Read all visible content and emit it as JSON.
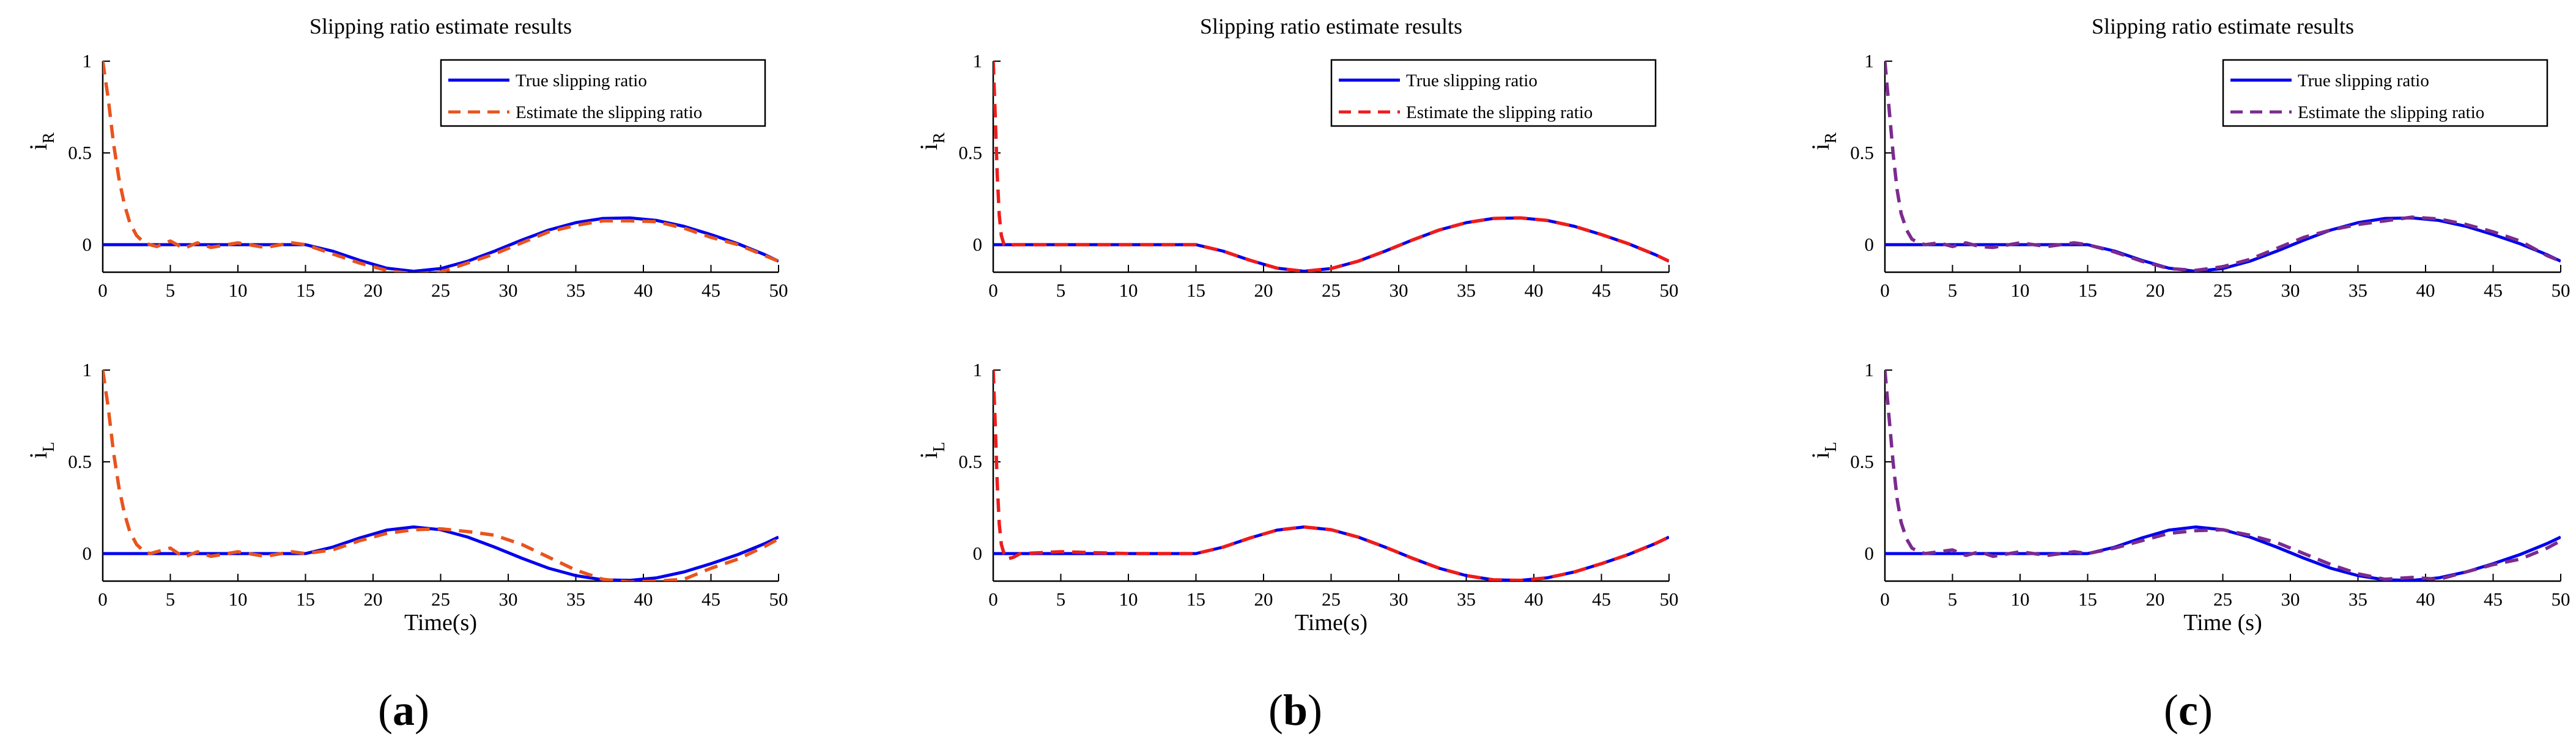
{
  "colors": {
    "true_line": "#0000ee",
    "estimate_a": "#e8541e",
    "estimate_b": "#ee1c1c",
    "estimate_c": "#7b2b8f"
  },
  "chart_data": [
    {
      "type": "line",
      "panel_label": "a",
      "title": "Slipping ratio estimate results",
      "xlabel": "Time(s)",
      "x_ticks": [
        "0",
        "5",
        "10",
        "15",
        "20",
        "25",
        "30",
        "35",
        "40",
        "45",
        "50"
      ],
      "xlim": [
        0,
        50
      ],
      "legend_position": "top-right",
      "estimate_color": "#e8541e",
      "subplots": [
        {
          "ylabel_main": "i",
          "ylabel_sub": "R",
          "ylim": [
            -0.15,
            1
          ],
          "y_ticks": [
            "0",
            "0.5",
            "1"
          ],
          "series": [
            {
              "name": "True slipping ratio",
              "role": "true",
              "style": "solid",
              "x": [
                0,
                15,
                17,
                19,
                21,
                23,
                25,
                27,
                29,
                31,
                33,
                35,
                37,
                39,
                41,
                43,
                45,
                47,
                49,
                50
              ],
              "y": [
                0,
                0,
                -0.035,
                -0.085,
                -0.128,
                -0.145,
                -0.13,
                -0.09,
                -0.035,
                0.025,
                0.08,
                0.12,
                0.143,
                0.146,
                0.132,
                0.1,
                0.055,
                0.005,
                -0.055,
                -0.09
              ]
            },
            {
              "name": "Estimate the slipping ratio",
              "role": "estimate",
              "style": "dashed",
              "x": [
                0,
                0.4,
                0.8,
                1.2,
                1.6,
                2,
                2.5,
                3,
                3.5,
                4,
                5,
                6,
                7,
                8,
                10,
                12,
                14,
                15,
                17,
                19,
                21,
                23,
                25,
                27,
                29,
                31,
                33,
                35,
                37,
                39,
                41,
                43,
                45,
                47,
                49,
                50
              ],
              "y": [
                1,
                0.8,
                0.55,
                0.36,
                0.22,
                0.12,
                0.05,
                0.015,
                0,
                -0.01,
                0.02,
                -0.02,
                0.01,
                -0.015,
                0.01,
                -0.015,
                0.01,
                0,
                -0.05,
                -0.1,
                -0.14,
                -0.16,
                -0.15,
                -0.1,
                -0.05,
                0.01,
                0.07,
                0.105,
                0.13,
                0.13,
                0.125,
                0.09,
                0.04,
                0,
                -0.06,
                -0.09
              ]
            }
          ]
        },
        {
          "ylabel_main": "i",
          "ylabel_sub": "L",
          "ylim": [
            -0.15,
            1
          ],
          "y_ticks": [
            "0",
            "0.5",
            "1"
          ],
          "series": [
            {
              "name": "True slipping ratio",
              "role": "true",
              "style": "solid",
              "x": [
                0,
                15,
                17,
                19,
                21,
                23,
                25,
                27,
                29,
                31,
                33,
                35,
                37,
                39,
                41,
                43,
                45,
                47,
                49,
                50
              ],
              "y": [
                0,
                0,
                0.035,
                0.085,
                0.128,
                0.145,
                0.13,
                0.09,
                0.035,
                -0.025,
                -0.08,
                -0.12,
                -0.143,
                -0.146,
                -0.132,
                -0.1,
                -0.055,
                -0.005,
                0.055,
                0.09
              ]
            },
            {
              "name": "Estimate the slipping ratio",
              "role": "estimate",
              "style": "dashed",
              "x": [
                0,
                0.4,
                0.8,
                1.2,
                1.6,
                2,
                2.5,
                3,
                3.5,
                4,
                5,
                6,
                7,
                8,
                10,
                12,
                14,
                15,
                17,
                19,
                21,
                23,
                25,
                27,
                29,
                31,
                33,
                35,
                37,
                39,
                41,
                43,
                45,
                47,
                49,
                50
              ],
              "y": [
                1,
                0.8,
                0.55,
                0.36,
                0.22,
                0.12,
                0.05,
                0.015,
                0,
                0.01,
                0.03,
                -0.02,
                0.01,
                -0.015,
                0.01,
                -0.015,
                0.01,
                0,
                0.02,
                0.07,
                0.11,
                0.13,
                0.135,
                0.12,
                0.1,
                0.05,
                -0.02,
                -0.09,
                -0.14,
                -0.155,
                -0.15,
                -0.14,
                -0.08,
                -0.03,
                0.04,
                0.08
              ]
            }
          ]
        }
      ]
    },
    {
      "type": "line",
      "panel_label": "b",
      "title": "Slipping ratio estimate results",
      "xlabel": "Time(s)",
      "x_ticks": [
        "0",
        "5",
        "10",
        "15",
        "20",
        "25",
        "30",
        "35",
        "40",
        "45",
        "50"
      ],
      "xlim": [
        0,
        50
      ],
      "legend_position": "top-right",
      "estimate_color": "#ee1c1c",
      "subplots": [
        {
          "ylabel_main": "i",
          "ylabel_sub": "R",
          "ylim": [
            -0.15,
            1
          ],
          "y_ticks": [
            "0",
            "0.5",
            "1"
          ],
          "series": [
            {
              "name": "True slipping ratio",
              "role": "true",
              "style": "solid",
              "x": [
                0,
                15,
                17,
                19,
                21,
                23,
                25,
                27,
                29,
                31,
                33,
                35,
                37,
                39,
                41,
                43,
                45,
                47,
                49,
                50
              ],
              "y": [
                0,
                0,
                -0.035,
                -0.085,
                -0.128,
                -0.145,
                -0.13,
                -0.09,
                -0.035,
                0.025,
                0.08,
                0.12,
                0.143,
                0.146,
                0.132,
                0.1,
                0.055,
                0.005,
                -0.055,
                -0.09
              ]
            },
            {
              "name": "Estimate the slipping ratio",
              "role": "estimate",
              "style": "dashed",
              "x": [
                0,
                0.15,
                0.3,
                0.45,
                0.6,
                0.8,
                1,
                1.5,
                2,
                5,
                10,
                15,
                17,
                19,
                21,
                23,
                25,
                27,
                29,
                31,
                33,
                35,
                37,
                39,
                41,
                43,
                45,
                47,
                49,
                50
              ],
              "y": [
                1,
                0.7,
                0.38,
                0.16,
                0.05,
                0,
                -0.01,
                0,
                0,
                0,
                0,
                0,
                -0.035,
                -0.085,
                -0.128,
                -0.145,
                -0.13,
                -0.09,
                -0.035,
                0.025,
                0.08,
                0.12,
                0.143,
                0.146,
                0.132,
                0.1,
                0.055,
                0.005,
                -0.055,
                -0.09
              ]
            }
          ]
        },
        {
          "ylabel_main": "i",
          "ylabel_sub": "L",
          "ylim": [
            -0.15,
            1
          ],
          "y_ticks": [
            "0",
            "0.5",
            "1"
          ],
          "series": [
            {
              "name": "True slipping ratio",
              "role": "true",
              "style": "solid",
              "x": [
                0,
                15,
                17,
                19,
                21,
                23,
                25,
                27,
                29,
                31,
                33,
                35,
                37,
                39,
                41,
                43,
                45,
                47,
                49,
                50
              ],
              "y": [
                0,
                0,
                0.035,
                0.085,
                0.128,
                0.145,
                0.13,
                0.09,
                0.035,
                -0.025,
                -0.08,
                -0.12,
                -0.143,
                -0.146,
                -0.132,
                -0.1,
                -0.055,
                -0.005,
                0.055,
                0.09
              ]
            },
            {
              "name": "Estimate the slipping ratio",
              "role": "estimate",
              "style": "dashed",
              "x": [
                0,
                0.15,
                0.3,
                0.45,
                0.6,
                0.8,
                1,
                1.5,
                2,
                5,
                10,
                15,
                17,
                19,
                21,
                23,
                25,
                27,
                29,
                31,
                33,
                35,
                37,
                39,
                41,
                43,
                45,
                47,
                49,
                50
              ],
              "y": [
                1,
                0.7,
                0.38,
                0.16,
                0.05,
                0,
                -0.03,
                -0.02,
                0,
                0.01,
                0,
                0,
                0.035,
                0.085,
                0.128,
                0.145,
                0.13,
                0.09,
                0.035,
                -0.025,
                -0.08,
                -0.12,
                -0.143,
                -0.146,
                -0.132,
                -0.1,
                -0.055,
                -0.005,
                0.055,
                0.09
              ]
            }
          ]
        }
      ]
    },
    {
      "type": "line",
      "panel_label": "c",
      "title": "Slipping ratio estimate results",
      "xlabel": "Time (s)",
      "x_ticks": [
        "0",
        "5",
        "10",
        "15",
        "20",
        "25",
        "30",
        "35",
        "40",
        "45",
        "50"
      ],
      "xlim": [
        0,
        50
      ],
      "legend_position": "top-right",
      "estimate_color": "#7b2b8f",
      "subplots": [
        {
          "ylabel_main": "i",
          "ylabel_sub": "R",
          "ylim": [
            -0.15,
            1
          ],
          "y_ticks": [
            "0",
            "0.5",
            "1"
          ],
          "series": [
            {
              "name": "True slipping ratio",
              "role": "true",
              "style": "solid",
              "x": [
                0,
                15,
                17,
                19,
                21,
                23,
                25,
                27,
                29,
                31,
                33,
                35,
                37,
                39,
                41,
                43,
                45,
                47,
                49,
                50
              ],
              "y": [
                0,
                0,
                -0.035,
                -0.085,
                -0.128,
                -0.145,
                -0.13,
                -0.09,
                -0.035,
                0.025,
                0.08,
                0.12,
                0.143,
                0.146,
                0.132,
                0.1,
                0.055,
                0.005,
                -0.055,
                -0.09
              ]
            },
            {
              "name": "Estimate the slipping ratio",
              "role": "estimate",
              "style": "dashed",
              "x": [
                0,
                0.3,
                0.6,
                0.9,
                1.2,
                1.6,
                2,
                2.5,
                3,
                4,
                5,
                6,
                7,
                8,
                10,
                12,
                14,
                15,
                17,
                19,
                21,
                23,
                25,
                27,
                29,
                31,
                33,
                35,
                37,
                39,
                41,
                43,
                45,
                47,
                49,
                50
              ],
              "y": [
                1,
                0.75,
                0.5,
                0.3,
                0.17,
                0.08,
                0.03,
                0.01,
                0,
                0.01,
                -0.01,
                0.01,
                -0.01,
                -0.015,
                0.01,
                -0.01,
                0.01,
                0,
                -0.04,
                -0.09,
                -0.13,
                -0.14,
                -0.12,
                -0.08,
                -0.02,
                0.04,
                0.08,
                0.11,
                0.13,
                0.15,
                0.14,
                0.11,
                0.07,
                0.02,
                -0.06,
                -0.09
              ]
            }
          ]
        },
        {
          "ylabel_main": "i",
          "ylabel_sub": "L",
          "ylim": [
            -0.15,
            1
          ],
          "y_ticks": [
            "0",
            "0.5",
            "1"
          ],
          "series": [
            {
              "name": "True slipping ratio",
              "role": "true",
              "style": "solid",
              "x": [
                0,
                15,
                17,
                19,
                21,
                23,
                25,
                27,
                29,
                31,
                33,
                35,
                37,
                39,
                41,
                43,
                45,
                47,
                49,
                50
              ],
              "y": [
                0,
                0,
                0.035,
                0.085,
                0.128,
                0.145,
                0.13,
                0.09,
                0.035,
                -0.025,
                -0.08,
                -0.12,
                -0.143,
                -0.146,
                -0.132,
                -0.1,
                -0.055,
                -0.005,
                0.055,
                0.09
              ]
            },
            {
              "name": "Estimate the slipping ratio",
              "role": "estimate",
              "style": "dashed",
              "x": [
                0,
                0.3,
                0.6,
                0.9,
                1.2,
                1.6,
                2,
                2.5,
                3,
                4,
                5,
                6,
                7,
                8,
                10,
                12,
                14,
                15,
                17,
                19,
                21,
                23,
                25,
                27,
                29,
                31,
                33,
                35,
                37,
                39,
                41,
                43,
                45,
                47,
                49,
                50
              ],
              "y": [
                1,
                0.75,
                0.5,
                0.3,
                0.17,
                0.08,
                0.03,
                0.01,
                0,
                0.01,
                0.02,
                -0.01,
                0.01,
                -0.015,
                0.01,
                -0.01,
                0.01,
                0,
                0.03,
                0.07,
                0.11,
                0.125,
                0.13,
                0.1,
                0.06,
                0,
                -0.06,
                -0.11,
                -0.14,
                -0.13,
                -0.14,
                -0.1,
                -0.06,
                -0.03,
                0.03,
                0.07
              ]
            }
          ]
        }
      ]
    }
  ]
}
